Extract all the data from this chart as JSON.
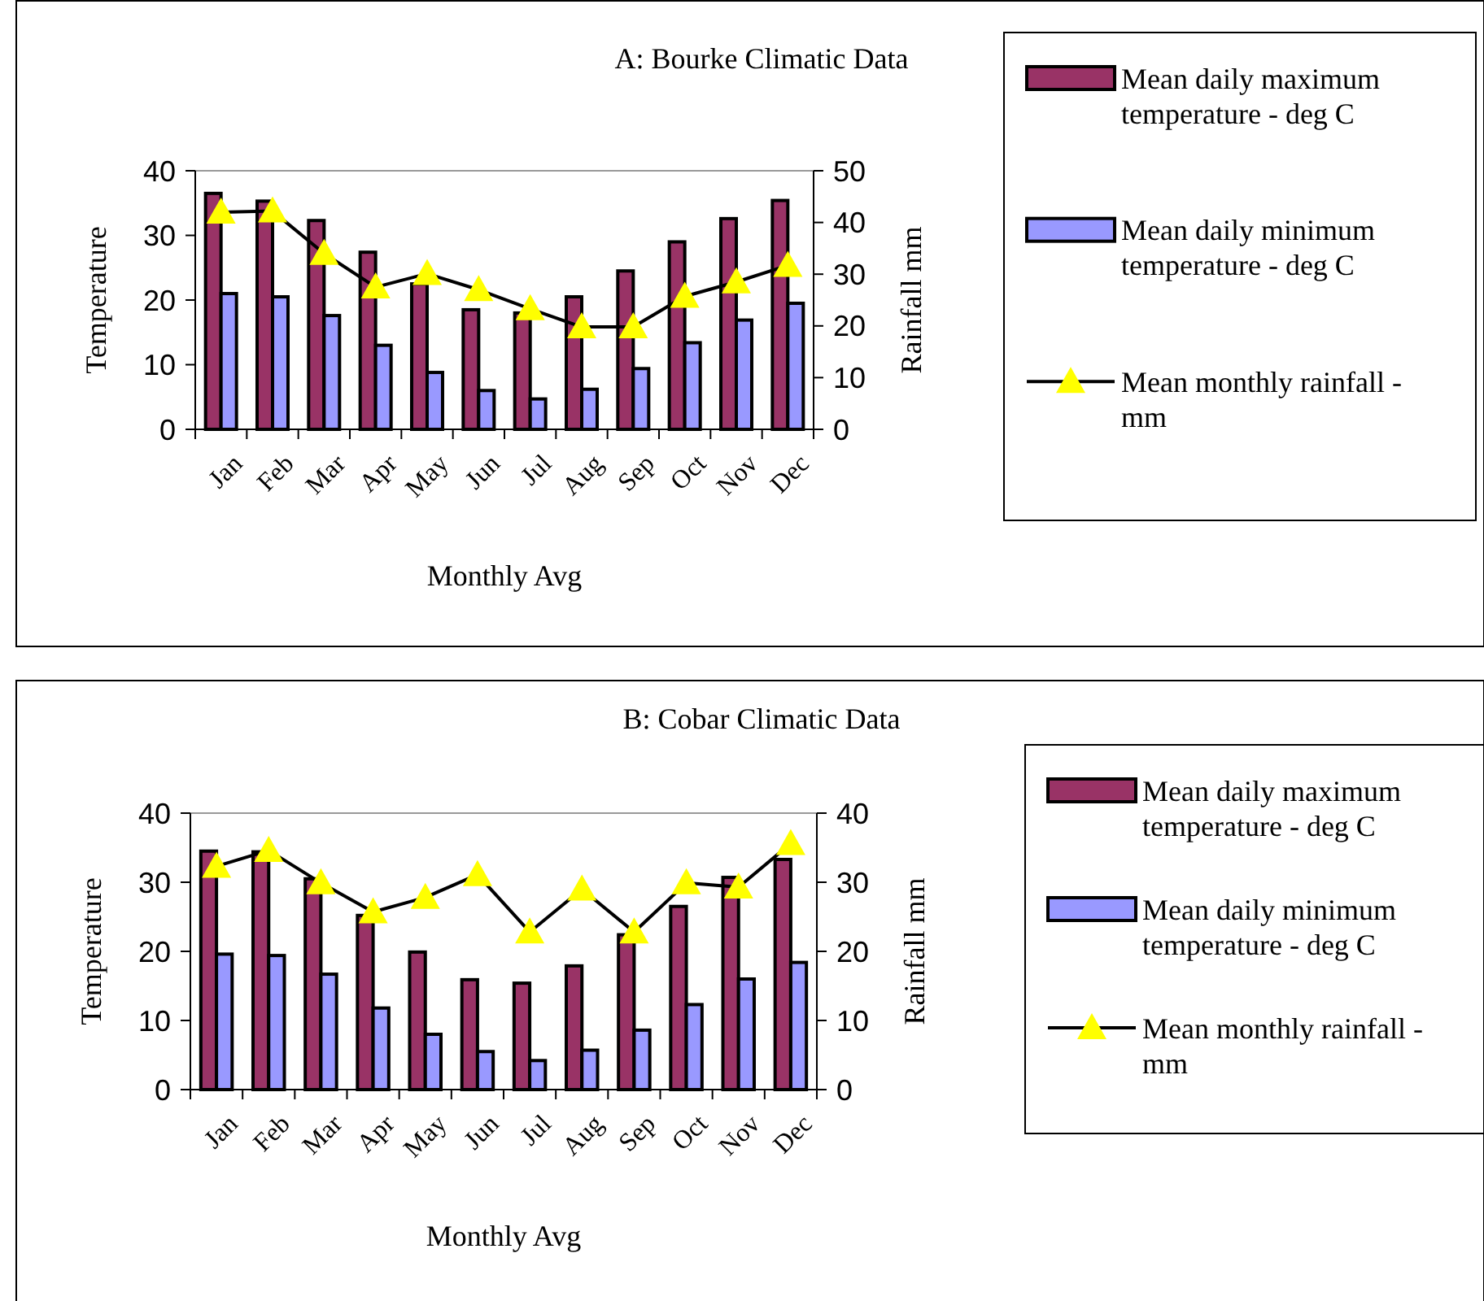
{
  "chart_data": [
    {
      "type": "bar",
      "title": "A: Bourke Climatic Data",
      "xlabel": "Monthly Avg",
      "ylabel": "Temperature",
      "y2label": "Rainfall mm",
      "categories": [
        "Jan",
        "Feb",
        "Mar",
        "Apr",
        "May",
        "Jun",
        "Jul",
        "Aug",
        "Sep",
        "Oct",
        "Nov",
        "Dec"
      ],
      "ylim": [
        0,
        40
      ],
      "yticks": [
        0,
        10,
        20,
        30,
        40
      ],
      "y2lim": [
        0,
        50
      ],
      "y2ticks": [
        0,
        10,
        20,
        30,
        40,
        50
      ],
      "grid": false,
      "legend": "right",
      "series": [
        {
          "name": "Mean daily maximum temperature - deg C",
          "color": "#993366",
          "values": [
            36.5,
            35.3,
            32.3,
            27.4,
            22.5,
            18.5,
            18,
            20.5,
            24.5,
            29,
            32.6,
            35.4
          ]
        },
        {
          "name": "Mean daily minimum temperature - deg C",
          "color": "#9999ff",
          "values": [
            21,
            20.5,
            17.6,
            13,
            8.8,
            6,
            4.7,
            6.2,
            9.4,
            13.4,
            16.9,
            19.5
          ]
        },
        {
          "name": "Mean monthly rainfall - mm",
          "type": "line",
          "axis": "y2",
          "color": "#000000",
          "marker": "triangle",
          "values": [
            42,
            42.2,
            34,
            27.5,
            30.1,
            27,
            23.3,
            19.8,
            19.8,
            25.7,
            28.5,
            31.7
          ]
        }
      ]
    },
    {
      "type": "bar",
      "title": "B: Cobar Climatic Data",
      "xlabel": "Monthly Avg",
      "ylabel": "Temperature",
      "y2label": "Rainfall mm",
      "categories": [
        "Jan",
        "Feb",
        "Mar",
        "Apr",
        "May",
        "Jun",
        "Jul",
        "Aug",
        "Sep",
        "Oct",
        "Nov",
        "Dec"
      ],
      "ylim": [
        0,
        40
      ],
      "yticks": [
        0,
        10,
        20,
        30,
        40
      ],
      "y2lim": [
        0,
        40
      ],
      "y2ticks": [
        0,
        10,
        20,
        30,
        40
      ],
      "grid": false,
      "legend": "right",
      "series": [
        {
          "name": "Mean daily maximum temperature - deg C",
          "color": "#993366",
          "values": [
            34.5,
            34.4,
            30.5,
            25.2,
            19.9,
            15.9,
            15.4,
            17.9,
            22.4,
            26.5,
            30.7,
            33.3
          ]
        },
        {
          "name": "Mean daily minimum temperature - deg C",
          "color": "#9999ff",
          "values": [
            19.6,
            19.4,
            16.7,
            11.8,
            8,
            5.5,
            4.2,
            5.7,
            8.6,
            12.3,
            16,
            18.4
          ]
        },
        {
          "name": "Mean monthly rainfall - mm",
          "type": "line",
          "axis": "y2",
          "color": "#000000",
          "marker": "triangle",
          "values": [
            32.3,
            34.6,
            29.9,
            25.7,
            27.8,
            31.1,
            22.8,
            29,
            22.8,
            29.9,
            29.3,
            35.6
          ]
        }
      ]
    }
  ]
}
